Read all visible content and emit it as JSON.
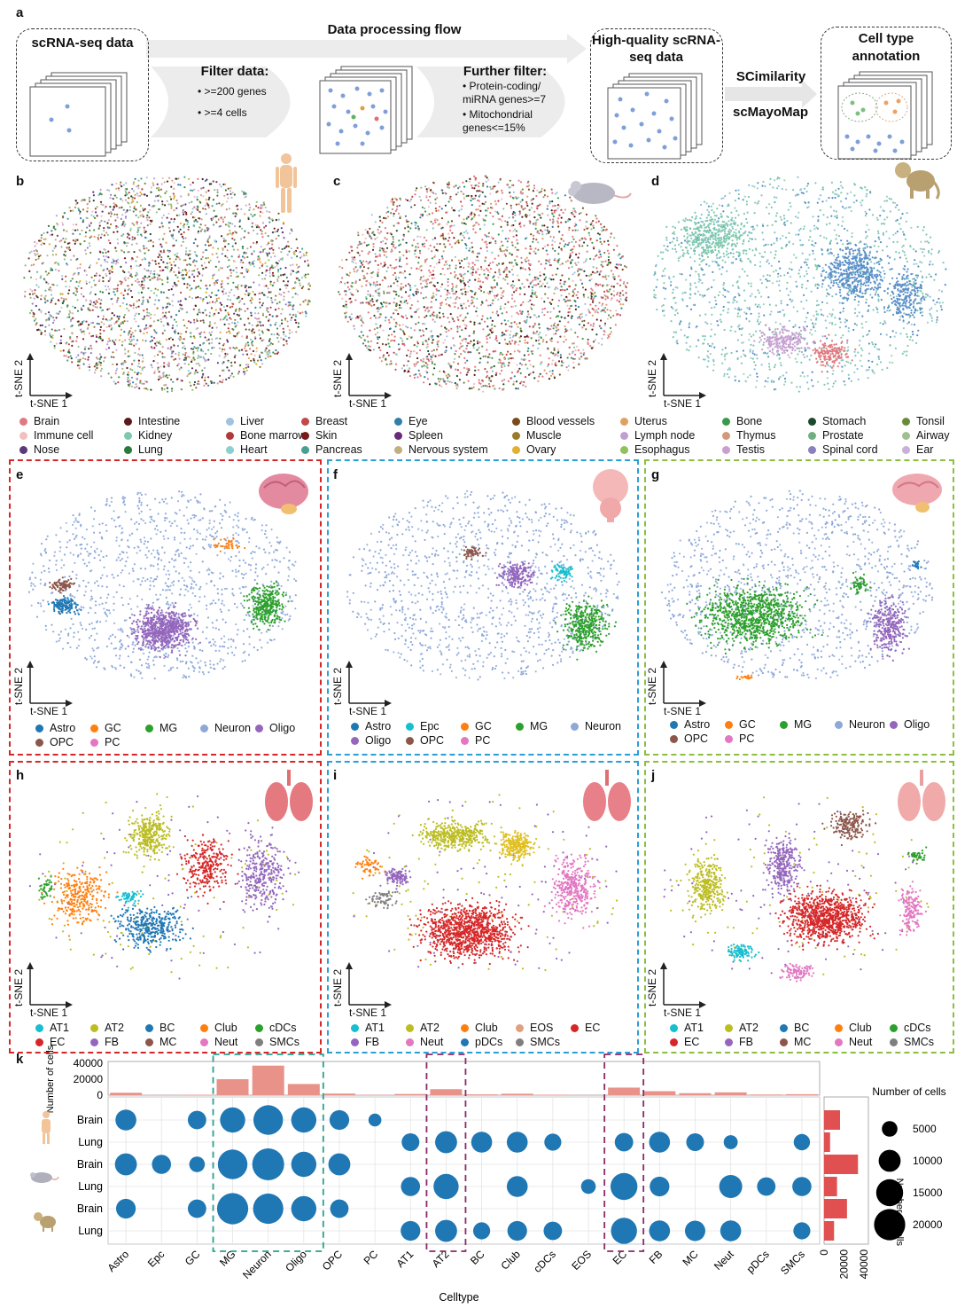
{
  "panel_a": {
    "label": "a",
    "flow_title": "Data processing flow",
    "box1": "scRNA-seq data",
    "filter_title": "Filter data:",
    "filter_items": [
      ">=200 genes",
      ">=4 cells"
    ],
    "further_title": "Further filter:",
    "further_items": [
      "Protein-coding/ miRNA genes>=7",
      "Mitochondrial genes<=15%"
    ],
    "box3": "High-quality scRNA-seq data",
    "tool1": "SCimilarity",
    "tool2": "scMayoMap",
    "box4": "Cell type annotation"
  },
  "tsne_axes": {
    "x": "t-SNE 1",
    "y": "t-SNE 2"
  },
  "panels_bcd": {
    "labels": [
      "b",
      "c",
      "d"
    ]
  },
  "tissue_legend": [
    {
      "name": "Brain",
      "color": "#e07a80"
    },
    {
      "name": "Intestine",
      "color": "#5a1a1a"
    },
    {
      "name": "Liver",
      "color": "#9fc3e0"
    },
    {
      "name": "Breast",
      "color": "#c0494a"
    },
    {
      "name": "Eye",
      "color": "#2f7fa8"
    },
    {
      "name": "Blood vessels",
      "color": "#7a4a1a"
    },
    {
      "name": "Uterus",
      "color": "#e0a060"
    },
    {
      "name": "Bone",
      "color": "#3a9a4a"
    },
    {
      "name": "Stomach",
      "color": "#1a4a2a"
    },
    {
      "name": "Tonsil",
      "color": "#6a8a3a"
    },
    {
      "name": "Immune cell",
      "color": "#f0c0c0"
    },
    {
      "name": "Kidney",
      "color": "#7fc8b0"
    },
    {
      "name": "Bone marrow",
      "color": "#b03a3a"
    },
    {
      "name": "Skin",
      "color": "#7a1a1a"
    },
    {
      "name": "Spleen",
      "color": "#6a2a7a"
    },
    {
      "name": "Muscle",
      "color": "#9a7a2a"
    },
    {
      "name": "Lymph node",
      "color": "#c0a0d0"
    },
    {
      "name": "Thymus",
      "color": "#d09a7a"
    },
    {
      "name": "Prostate",
      "color": "#70b080"
    },
    {
      "name": "Airway",
      "color": "#a0c090"
    },
    {
      "name": "Nose",
      "color": "#5a3a7a"
    },
    {
      "name": "Lung",
      "color": "#2a7a3a"
    },
    {
      "name": "Heart",
      "color": "#8ad0d0"
    },
    {
      "name": "Pancreas",
      "color": "#4aa090"
    },
    {
      "name": "Nervous system",
      "color": "#c0b080"
    },
    {
      "name": "Ovary",
      "color": "#e0b030"
    },
    {
      "name": "Esophagus",
      "color": "#90c060"
    },
    {
      "name": "Testis",
      "color": "#c8a0d0"
    },
    {
      "name": "Spinal cord",
      "color": "#8a80c0"
    },
    {
      "name": "Ear",
      "color": "#c8b0d8"
    }
  ],
  "brain_panels": [
    {
      "label": "e",
      "frame": "#d62728",
      "legend": [
        {
          "name": "Astro",
          "color": "#1f77b4"
        },
        {
          "name": "GC",
          "color": "#ff7f0e"
        },
        {
          "name": "MG",
          "color": "#2ca02c"
        },
        {
          "name": "Neuron",
          "color": "#8ea8d8"
        },
        {
          "name": "Oligo",
          "color": "#9467bd"
        },
        {
          "name": "OPC",
          "color": "#8c564b"
        },
        {
          "name": "PC",
          "color": "#e377c2"
        }
      ]
    },
    {
      "label": "f",
      "frame": "#2a9fd6",
      "legend": [
        {
          "name": "Astro",
          "color": "#1f77b4"
        },
        {
          "name": "Epc",
          "color": "#17becf"
        },
        {
          "name": "GC",
          "color": "#ff7f0e"
        },
        {
          "name": "MG",
          "color": "#2ca02c"
        },
        {
          "name": "Neuron",
          "color": "#8ea8d8"
        },
        {
          "name": "Oligo",
          "color": "#9467bd"
        },
        {
          "name": "OPC",
          "color": "#8c564b"
        },
        {
          "name": "PC",
          "color": "#e377c2"
        }
      ]
    },
    {
      "label": "g",
      "frame": "#8cbf3f",
      "legend": [
        {
          "name": "Astro",
          "color": "#1f77b4"
        },
        {
          "name": "GC",
          "color": "#ff7f0e"
        },
        {
          "name": "MG",
          "color": "#2ca02c"
        },
        {
          "name": "Neuron",
          "color": "#8ea8d8"
        },
        {
          "name": "Oligo",
          "color": "#9467bd"
        },
        {
          "name": "OPC",
          "color": "#8c564b"
        },
        {
          "name": "PC",
          "color": "#e377c2"
        }
      ]
    }
  ],
  "lung_panels": [
    {
      "label": "h",
      "frame": "#d62728",
      "legend": [
        {
          "name": "AT1",
          "color": "#17becf"
        },
        {
          "name": "AT2",
          "color": "#bcbd22"
        },
        {
          "name": "BC",
          "color": "#1f77b4"
        },
        {
          "name": "Club",
          "color": "#ff7f0e"
        },
        {
          "name": "cDCs",
          "color": "#2ca02c"
        },
        {
          "name": "EC",
          "color": "#d62728"
        },
        {
          "name": "FB",
          "color": "#9467bd"
        },
        {
          "name": "MC",
          "color": "#8c564b"
        },
        {
          "name": "Neut",
          "color": "#e377c2"
        },
        {
          "name": "SMCs",
          "color": "#7f7f7f"
        }
      ]
    },
    {
      "label": "i",
      "frame": "#2a9fd6",
      "legend": [
        {
          "name": "AT1",
          "color": "#17becf"
        },
        {
          "name": "AT2",
          "color": "#bcbd22"
        },
        {
          "name": "Club",
          "color": "#ff7f0e"
        },
        {
          "name": "EOS",
          "color": "#e0a080"
        },
        {
          "name": "EC",
          "color": "#d62728"
        },
        {
          "name": "FB",
          "color": "#9467bd"
        },
        {
          "name": "Neut",
          "color": "#e377c2"
        },
        {
          "name": "pDCs",
          "color": "#1f77b4"
        },
        {
          "name": "SMCs",
          "color": "#7f7f7f"
        }
      ]
    },
    {
      "label": "j",
      "frame": "#8cbf3f",
      "legend": [
        {
          "name": "AT1",
          "color": "#17becf"
        },
        {
          "name": "AT2",
          "color": "#bcbd22"
        },
        {
          "name": "BC",
          "color": "#1f77b4"
        },
        {
          "name": "Club",
          "color": "#ff7f0e"
        },
        {
          "name": "cDCs",
          "color": "#2ca02c"
        },
        {
          "name": "EC",
          "color": "#d62728"
        },
        {
          "name": "FB",
          "color": "#9467bd"
        },
        {
          "name": "MC",
          "color": "#8c564b"
        },
        {
          "name": "Neut",
          "color": "#e377c2"
        },
        {
          "name": "SMCs",
          "color": "#7f7f7f"
        }
      ]
    }
  ],
  "chart_data": {
    "type": "scatter",
    "label": "k",
    "xlabel": "Celltype",
    "top_ylabel": "Number of cells",
    "top_yticks": [
      0,
      20000,
      40000
    ],
    "right_xlabel": "Number of cells",
    "right_xticks": [
      0,
      20000,
      40000
    ],
    "size_legend_title": "Number of cells",
    "size_legend": [
      5000,
      10000,
      15000,
      20000
    ],
    "categories": [
      "Astro",
      "Epc",
      "GC",
      "MG",
      "Neuron",
      "Oligo",
      "OPC",
      "PC",
      "AT1",
      "AT2",
      "BC",
      "Club",
      "cDCs",
      "EOS",
      "EC",
      "FB",
      "MC",
      "Neut",
      "pDCs",
      "SMCs"
    ],
    "rows": [
      "Brain",
      "Lung",
      "Brain",
      "Lung",
      "Brain",
      "Lung"
    ],
    "top_bars": [
      3000,
      200,
      500,
      20000,
      37000,
      14000,
      2000,
      400,
      1500,
      7500,
      1000,
      1800,
      600,
      100,
      9500,
      5000,
      2500,
      3500,
      800,
      1200
    ],
    "right_bars": [
      16000,
      6000,
      34000,
      13000,
      23000,
      10000
    ],
    "dots": [
      [
        9000,
        0,
        7000,
        13000,
        18000,
        13000,
        8000,
        3500,
        0,
        0,
        0,
        0,
        0,
        0,
        0,
        0,
        0,
        0,
        0,
        0
      ],
      [
        0,
        0,
        0,
        0,
        0,
        0,
        0,
        0,
        6500,
        10000,
        9000,
        9000,
        6000,
        0,
        7000,
        9000,
        6500,
        4000,
        0,
        5500
      ],
      [
        10000,
        7500,
        5000,
        18000,
        21000,
        13000,
        10000,
        0,
        0,
        0,
        0,
        0,
        0,
        0,
        0,
        0,
        0,
        0,
        0,
        0
      ],
      [
        0,
        0,
        0,
        0,
        0,
        0,
        0,
        0,
        7500,
        13000,
        0,
        9000,
        0,
        4500,
        15000,
        8000,
        0,
        11000,
        7000,
        7500
      ],
      [
        8000,
        0,
        7000,
        20000,
        19000,
        13000,
        7000,
        0,
        0,
        0,
        0,
        0,
        0,
        0,
        0,
        0,
        0,
        0,
        0,
        0
      ],
      [
        0,
        0,
        0,
        0,
        0,
        0,
        0,
        0,
        8000,
        10000,
        6000,
        8000,
        7000,
        0,
        14000,
        9000,
        8500,
        9000,
        0,
        6000
      ]
    ],
    "dot_color": "#1f77b4",
    "bar_color": "#e8928a",
    "right_bar_color": "#e05050"
  }
}
